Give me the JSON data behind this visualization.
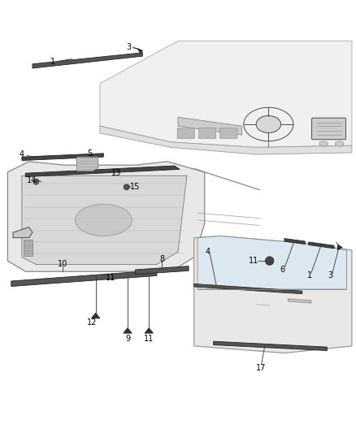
{
  "background_color": "#ffffff",
  "line_color": "#333333",
  "label_color": "#000000",
  "fig_width": 4.38,
  "fig_height": 5.33,
  "dpi": 100
}
